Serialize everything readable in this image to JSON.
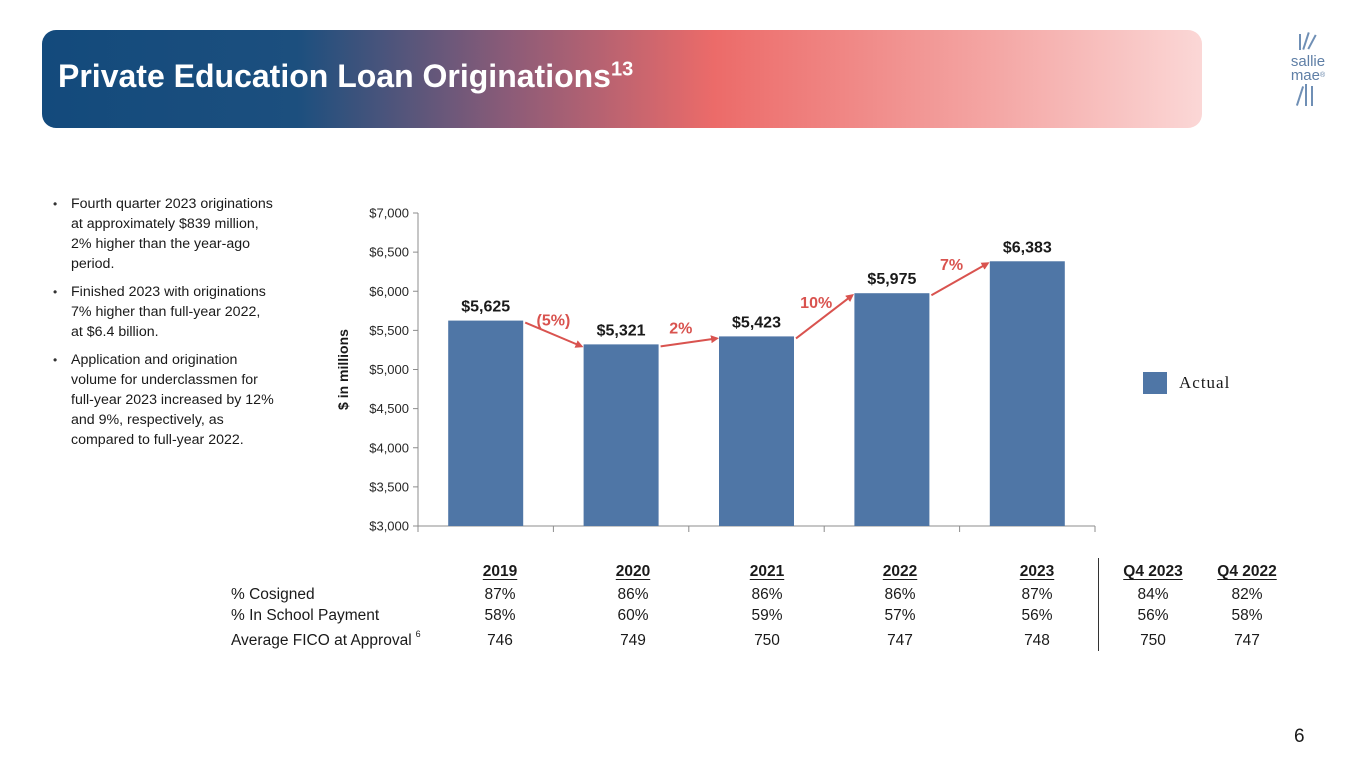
{
  "header": {
    "title": "Private Education Loan Originations",
    "title_superscript": "13",
    "logo_line1": "sallie",
    "logo_line2": "mae",
    "logo_mark": "®",
    "band_colors": [
      "#134a7c",
      "#ec6b69",
      "#fbd7d6"
    ]
  },
  "bullets": [
    "Fourth quarter 2023 originations at approximately $839 million, 2% higher than the year-ago period.",
    "Finished 2023 with originations 7% higher than full-year 2022, at $6.4 billion.",
    "Application and origination volume for underclassmen for full-year 2023 increased by 12% and 9%, respectively, as compared to full-year 2022."
  ],
  "chart_data": {
    "type": "bar",
    "ylabel": "$ in millions",
    "ylim": [
      3000,
      7000
    ],
    "y_ticks": [
      3000,
      3500,
      4000,
      4500,
      5000,
      5500,
      6000,
      6500,
      7000
    ],
    "y_tick_labels": [
      "$3,000",
      "$3,500",
      "$4,000",
      "$4,500",
      "$5,000",
      "$5,500",
      "$6,000",
      "$6,500",
      "$7,000"
    ],
    "categories": [
      "2019",
      "2020",
      "2021",
      "2022",
      "2023"
    ],
    "series": [
      {
        "name": "Actual",
        "values": [
          5625,
          5321,
          5423,
          5975,
          6383
        ]
      }
    ],
    "data_labels": [
      "$5,625",
      "$5,321",
      "$5,423",
      "$5,975",
      "$6,383"
    ],
    "growth_labels": [
      "(5%)",
      "2%",
      "10%",
      "7%"
    ],
    "bar_color": "#4f76a6",
    "arrow_color": "#d9534f",
    "grid": false,
    "legend_position": "right"
  },
  "legend": {
    "label": "Actual"
  },
  "stats_table": {
    "columns": [
      "2019",
      "2020",
      "2021",
      "2022",
      "2023",
      "Q4 2023",
      "Q4 2022"
    ],
    "rows": [
      {
        "label": "% Cosigned",
        "footnote": "",
        "values": [
          "87%",
          "86%",
          "86%",
          "86%",
          "87%",
          "84%",
          "82%"
        ]
      },
      {
        "label": "% In School Payment",
        "footnote": "",
        "values": [
          "58%",
          "60%",
          "59%",
          "57%",
          "56%",
          "56%",
          "58%"
        ]
      },
      {
        "label": "Average FICO at Approval",
        "footnote": "6",
        "values": [
          "746",
          "749",
          "750",
          "747",
          "748",
          "750",
          "747"
        ]
      }
    ]
  },
  "page_number": "6"
}
